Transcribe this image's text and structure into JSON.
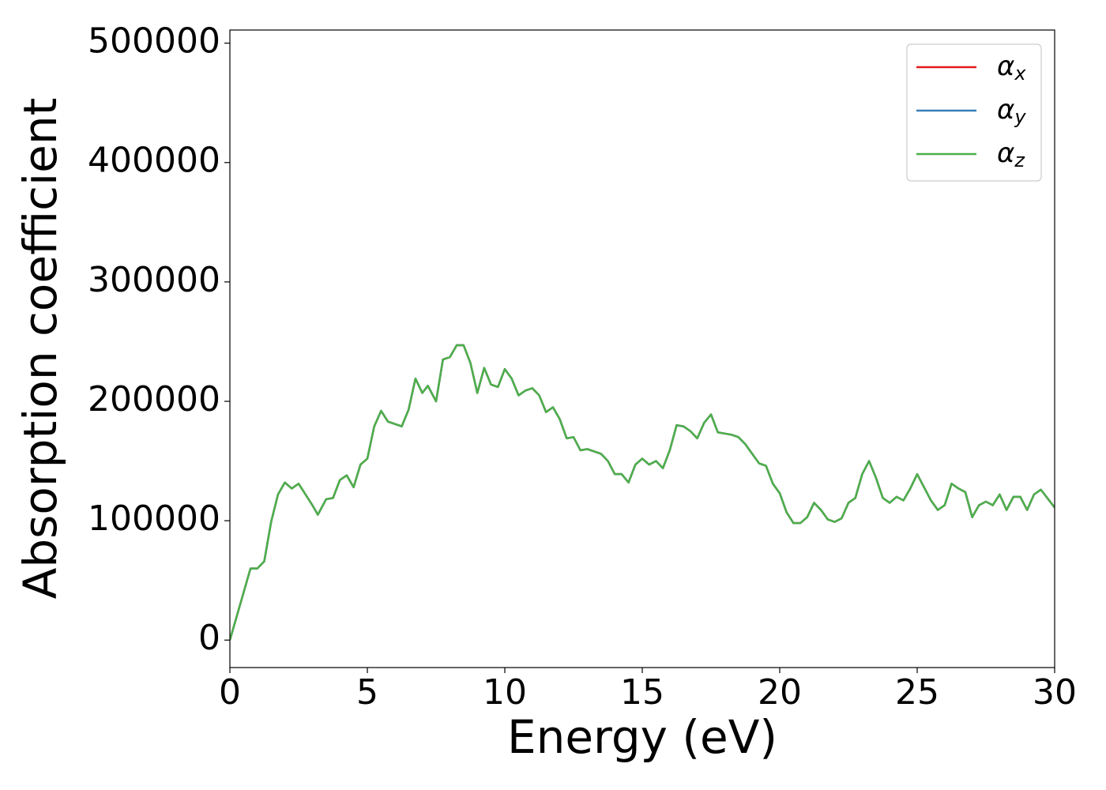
{
  "chart_data": {
    "type": "line",
    "xlabel": "Energy (eV)",
    "ylabel": "Absorption coefficient",
    "x": [
      0,
      0.25,
      0.5,
      0.75,
      1.0,
      1.25,
      1.5,
      1.75,
      2.0,
      2.25,
      2.5,
      2.75,
      3.0,
      3.2,
      3.5,
      3.75,
      4.0,
      4.25,
      4.5,
      4.75,
      5.0,
      5.25,
      5.5,
      5.75,
      6.0,
      6.25,
      6.5,
      6.75,
      7.0,
      7.2,
      7.5,
      7.75,
      8.0,
      8.25,
      8.5,
      8.75,
      9.0,
      9.25,
      9.5,
      9.75,
      10.0,
      10.25,
      10.5,
      10.75,
      11.0,
      11.25,
      11.5,
      11.75,
      12.0,
      12.25,
      12.5,
      12.75,
      13.0,
      13.5,
      13.75,
      14.0,
      14.25,
      14.5,
      14.75,
      15.0,
      15.25,
      15.5,
      15.75,
      16.0,
      16.25,
      16.5,
      16.75,
      17.0,
      17.25,
      17.5,
      17.75,
      18.0,
      18.25,
      18.5,
      18.75,
      19.0,
      19.25,
      19.5,
      19.75,
      20.0,
      20.25,
      20.5,
      20.75,
      21.0,
      21.25,
      21.5,
      21.75,
      22.0,
      22.25,
      22.5,
      22.75,
      23.0,
      23.25,
      23.5,
      23.75,
      24.0,
      24.25,
      24.5,
      24.75,
      25.0,
      25.25,
      25.5,
      25.75,
      26.0,
      26.25,
      26.5,
      26.75,
      27.0,
      27.25,
      27.5,
      27.75,
      28.0,
      28.25,
      28.5,
      28.75,
      29.0,
      29.25,
      29.5,
      30.0
    ],
    "series": [
      {
        "name": "αx",
        "color": "#e41a1c",
        "values": [
          0,
          20000,
          40000,
          60000,
          60000,
          66000,
          99000,
          122000,
          132000,
          127000,
          131000,
          122000,
          113000,
          105000,
          118000,
          119000,
          134000,
          138000,
          128000,
          147000,
          152000,
          179000,
          192000,
          183000,
          181000,
          179000,
          193000,
          219000,
          207000,
          213000,
          200000,
          235000,
          237000,
          247000,
          247000,
          232000,
          207000,
          228000,
          214000,
          212000,
          227000,
          219000,
          205000,
          209000,
          211000,
          205000,
          191000,
          195000,
          185000,
          169000,
          170000,
          159000,
          160000,
          156000,
          150000,
          139000,
          139000,
          132000,
          147000,
          152000,
          147000,
          150000,
          144000,
          159000,
          180000,
          179000,
          175000,
          169000,
          182000,
          189000,
          174000,
          173000,
          172000,
          170000,
          164000,
          156000,
          148000,
          146000,
          131000,
          123000,
          107000,
          98000,
          98000,
          103000,
          115000,
          109000,
          101000,
          99000,
          102000,
          115000,
          119000,
          139000,
          150000,
          136000,
          119000,
          115000,
          120000,
          117000,
          127000,
          139000,
          128000,
          117000,
          109000,
          113000,
          131000,
          127000,
          124000,
          103000,
          113000,
          116000,
          113000,
          122000,
          109000,
          120000,
          120000,
          109000,
          122000,
          126000,
          111000
        ]
      },
      {
        "name": "αy",
        "color": "#377eb8",
        "values": [
          0,
          20000,
          40000,
          60000,
          60000,
          66000,
          99000,
          122000,
          132000,
          127000,
          131000,
          122000,
          113000,
          105000,
          118000,
          119000,
          134000,
          138000,
          128000,
          147000,
          152000,
          179000,
          192000,
          183000,
          181000,
          179000,
          193000,
          219000,
          207000,
          213000,
          200000,
          235000,
          237000,
          247000,
          247000,
          232000,
          207000,
          228000,
          214000,
          212000,
          227000,
          219000,
          205000,
          209000,
          211000,
          205000,
          191000,
          195000,
          185000,
          169000,
          170000,
          159000,
          160000,
          156000,
          150000,
          139000,
          139000,
          132000,
          147000,
          152000,
          147000,
          150000,
          144000,
          159000,
          180000,
          179000,
          175000,
          169000,
          182000,
          189000,
          174000,
          173000,
          172000,
          170000,
          164000,
          156000,
          148000,
          146000,
          131000,
          123000,
          107000,
          98000,
          98000,
          103000,
          115000,
          109000,
          101000,
          99000,
          102000,
          115000,
          119000,
          139000,
          150000,
          136000,
          119000,
          115000,
          120000,
          117000,
          127000,
          139000,
          128000,
          117000,
          109000,
          113000,
          131000,
          127000,
          124000,
          103000,
          113000,
          116000,
          113000,
          122000,
          109000,
          120000,
          120000,
          109000,
          122000,
          126000,
          111000
        ]
      },
      {
        "name": "αz",
        "color": "#4daf4a",
        "values": [
          0,
          20000,
          40000,
          60000,
          60000,
          66000,
          99000,
          122000,
          132000,
          127000,
          131000,
          122000,
          113000,
          105000,
          118000,
          119000,
          134000,
          138000,
          128000,
          147000,
          152000,
          179000,
          192000,
          183000,
          181000,
          179000,
          193000,
          219000,
          207000,
          213000,
          200000,
          235000,
          237000,
          247000,
          247000,
          232000,
          207000,
          228000,
          214000,
          212000,
          227000,
          219000,
          205000,
          209000,
          211000,
          205000,
          191000,
          195000,
          185000,
          169000,
          170000,
          159000,
          160000,
          156000,
          150000,
          139000,
          139000,
          132000,
          147000,
          152000,
          147000,
          150000,
          144000,
          159000,
          180000,
          179000,
          175000,
          169000,
          182000,
          189000,
          174000,
          173000,
          172000,
          170000,
          164000,
          156000,
          148000,
          146000,
          131000,
          123000,
          107000,
          98000,
          98000,
          103000,
          115000,
          109000,
          101000,
          99000,
          102000,
          115000,
          119000,
          139000,
          150000,
          136000,
          119000,
          115000,
          120000,
          117000,
          127000,
          139000,
          128000,
          117000,
          109000,
          113000,
          131000,
          127000,
          124000,
          103000,
          113000,
          116000,
          113000,
          122000,
          109000,
          120000,
          120000,
          109000,
          122000,
          126000,
          111000
        ]
      }
    ],
    "xlim": [
      0,
      30
    ],
    "xticks": [
      0,
      5,
      10,
      15,
      20,
      25,
      30
    ],
    "ylim": [
      -23000,
      511000
    ],
    "yticks": [
      0,
      100000,
      200000,
      300000,
      400000,
      500000
    ],
    "grid": false,
    "legend": "upper right"
  }
}
